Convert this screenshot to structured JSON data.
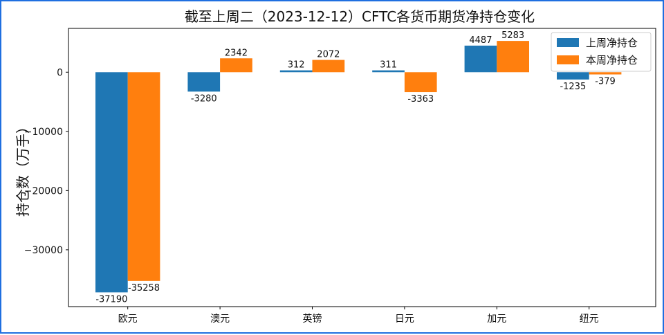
{
  "chart_data": {
    "type": "bar",
    "title": "截至上周二（2023-12-12）CFTC各货币期货净持仓变化",
    "xlabel": "",
    "ylabel": "持仓数（万手）",
    "categories": [
      "欧元",
      "澳元",
      "英镑",
      "日元",
      "加元",
      "纽元"
    ],
    "series": [
      {
        "name": "上周净持仓",
        "values": [
          -37190,
          -3280,
          312,
          311,
          4487,
          -1235
        ]
      },
      {
        "name": "本周净持仓",
        "values": [
          -35258,
          2342,
          2072,
          -3363,
          5283,
          -379
        ]
      }
    ],
    "ylim": [
      -39600,
      7400
    ],
    "yticks": [
      0,
      -10000,
      -20000,
      -30000
    ],
    "grid": false,
    "legend_position": "top-right",
    "colors": [
      "#1f77b4",
      "#ff7f0e"
    ],
    "frame_color": "#1f6fe0"
  }
}
